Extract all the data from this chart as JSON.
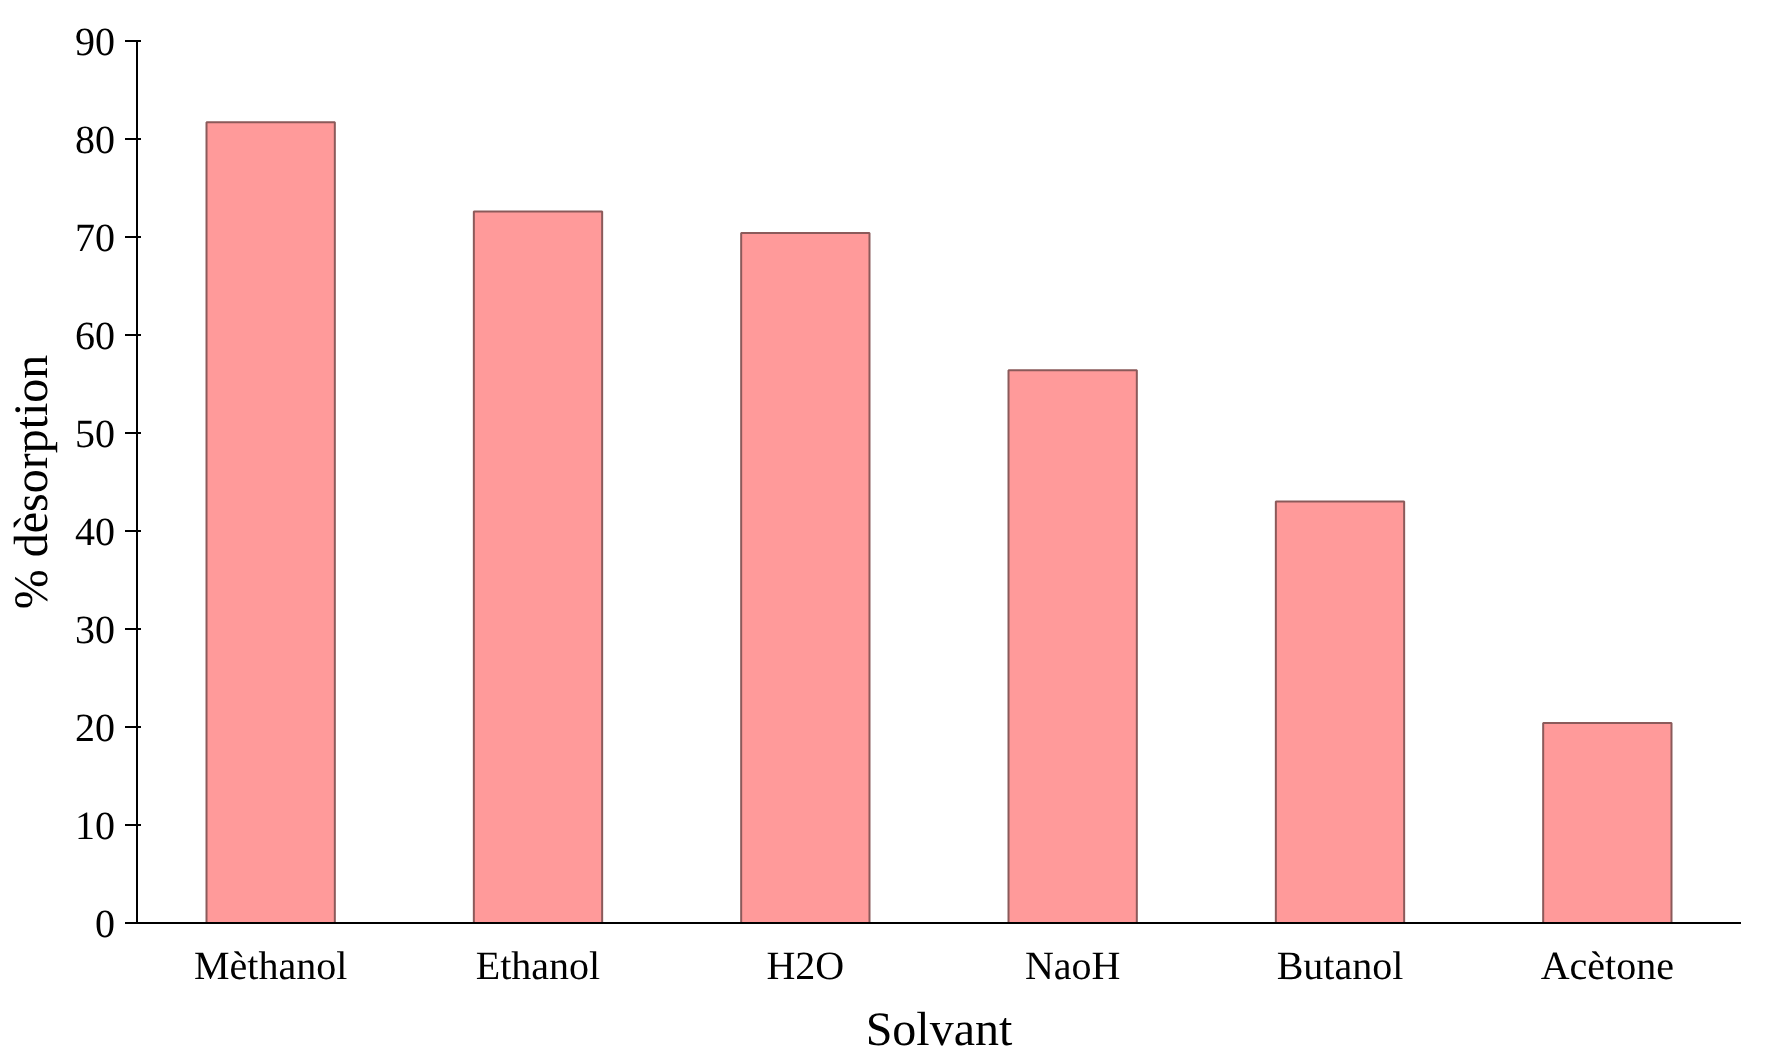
{
  "chart_data": {
    "type": "bar",
    "xlabel": "Solvant",
    "ylabel": "% dèsorption",
    "categories": [
      "Mèthanol",
      "Ethanol",
      "H2O",
      "NaoH",
      "Butanol",
      "Acètone"
    ],
    "values": [
      81.7,
      72.6,
      70.4,
      56.4,
      43,
      20.4
    ],
    "color": "#ff9a9a",
    "ylim": [
      0,
      90
    ],
    "yticks": [
      0,
      10,
      20,
      30,
      40,
      50,
      60,
      70,
      80,
      90
    ],
    "grid": false
  }
}
